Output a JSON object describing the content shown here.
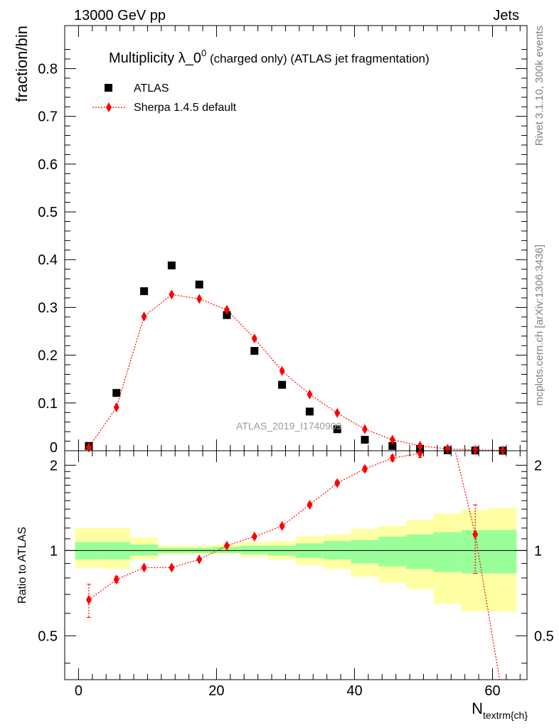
{
  "header": {
    "left": "13000 GeV pp",
    "right": "Jets"
  },
  "side_labels": {
    "rivet": "Rivet 3.1.10,  300k events",
    "mcplots": "mcplots.cern.ch [arXiv:1306.3436]"
  },
  "chart_data": [
    {
      "type": "scatter",
      "title_main": "Multiplicity λ_0",
      "title_sup": "0",
      "title_rest": " (charged only) (ATLAS jet fragmentation)",
      "ylabel": "fraction/bin",
      "watermark": "ATLAS_2019_I1740909",
      "ylim": [
        0,
        0.89
      ],
      "xlim": [
        -2,
        65
      ],
      "yticks": [
        "0",
        "0.1",
        "0.2",
        "0.3",
        "0.4",
        "0.5",
        "0.6",
        "0.7",
        "0.8"
      ],
      "x": [
        1.5,
        5.5,
        9.5,
        13.5,
        17.5,
        21.5,
        25.5,
        29.5,
        33.5,
        37.5,
        41.5,
        45.5,
        49.5,
        53.5,
        57.5,
        61.5
      ],
      "series": [
        {
          "name": "ATLAS",
          "marker": "square",
          "color": "#000000",
          "values": [
            0.01,
            0.121,
            0.334,
            0.388,
            0.348,
            0.284,
            0.209,
            0.138,
            0.082,
            0.045,
            0.023,
            0.01,
            0.004,
            0.001,
            0.0005,
            0.0002
          ]
        },
        {
          "name": "Sherpa 1.4.5 default",
          "marker": "diamond",
          "color": "#ff0000",
          "values": [
            0.007,
            0.091,
            0.281,
            0.327,
            0.318,
            0.295,
            0.235,
            0.167,
            0.118,
            0.079,
            0.045,
            0.023,
            0.01,
            0.004,
            0.0015,
            0.0005
          ]
        }
      ]
    },
    {
      "type": "line",
      "ylabel": "Ratio to ATLAS",
      "xlabel": "N",
      "xlabel_sub": "textrm{ch}",
      "ylim": [
        0.35,
        2.25
      ],
      "xlim": [
        -2,
        65
      ],
      "yticks": [
        "0.5",
        "1",
        "2"
      ],
      "xticks": [
        "0",
        "20",
        "40",
        "60"
      ],
      "bands": [
        {
          "x0": -0.5,
          "x1": 3.5,
          "stat_lo": 0.93,
          "stat_hi": 1.07,
          "tot_lo": 0.87,
          "tot_hi": 1.2
        },
        {
          "x0": 3.5,
          "x1": 7.5,
          "stat_lo": 0.93,
          "stat_hi": 1.07,
          "tot_lo": 0.86,
          "tot_hi": 1.2
        },
        {
          "x0": 7.5,
          "x1": 11.5,
          "stat_lo": 0.96,
          "stat_hi": 1.05,
          "tot_lo": 0.93,
          "tot_hi": 1.11
        },
        {
          "x0": 11.5,
          "x1": 15.5,
          "stat_lo": 0.98,
          "stat_hi": 1.02,
          "tot_lo": 0.97,
          "tot_hi": 1.04
        },
        {
          "x0": 15.5,
          "x1": 19.5,
          "stat_lo": 0.98,
          "stat_hi": 1.02,
          "tot_lo": 0.97,
          "tot_hi": 1.04
        },
        {
          "x0": 19.5,
          "x1": 23.5,
          "stat_lo": 0.98,
          "stat_hi": 1.03,
          "tot_lo": 0.97,
          "tot_hi": 1.05
        },
        {
          "x0": 23.5,
          "x1": 27.5,
          "stat_lo": 0.97,
          "stat_hi": 1.04,
          "tot_lo": 0.95,
          "tot_hi": 1.07
        },
        {
          "x0": 27.5,
          "x1": 31.5,
          "stat_lo": 0.96,
          "stat_hi": 1.04,
          "tot_lo": 0.93,
          "tot_hi": 1.08
        },
        {
          "x0": 31.5,
          "x1": 35.5,
          "stat_lo": 0.94,
          "stat_hi": 1.06,
          "tot_lo": 0.89,
          "tot_hi": 1.12
        },
        {
          "x0": 35.5,
          "x1": 39.5,
          "stat_lo": 0.93,
          "stat_hi": 1.08,
          "tot_lo": 0.86,
          "tot_hi": 1.14
        },
        {
          "x0": 39.5,
          "x1": 43.5,
          "stat_lo": 0.9,
          "stat_hi": 1.09,
          "tot_lo": 0.81,
          "tot_hi": 1.19
        },
        {
          "x0": 43.5,
          "x1": 47.5,
          "stat_lo": 0.88,
          "stat_hi": 1.12,
          "tot_lo": 0.77,
          "tot_hi": 1.22
        },
        {
          "x0": 47.5,
          "x1": 51.5,
          "stat_lo": 0.86,
          "stat_hi": 1.14,
          "tot_lo": 0.73,
          "tot_hi": 1.28
        },
        {
          "x0": 51.5,
          "x1": 55.5,
          "stat_lo": 0.84,
          "stat_hi": 1.16,
          "tot_lo": 0.65,
          "tot_hi": 1.35
        },
        {
          "x0": 55.5,
          "x1": 59.5,
          "stat_lo": 0.83,
          "stat_hi": 1.18,
          "tot_lo": 0.61,
          "tot_hi": 1.39
        },
        {
          "x0": 59.5,
          "x1": 63.5,
          "stat_lo": 0.83,
          "stat_hi": 1.18,
          "tot_lo": 0.61,
          "tot_hi": 1.41
        }
      ],
      "series": [
        {
          "name": "Sherpa 1.4.5 default",
          "color": "#ff0000",
          "x": [
            1.5,
            5.5,
            9.5,
            13.5,
            17.5,
            21.5,
            25.5,
            29.5,
            33.5,
            37.5,
            41.5,
            45.5,
            49.5,
            57.5
          ],
          "values": [
            0.67,
            0.79,
            0.87,
            0.87,
            0.93,
            1.04,
            1.12,
            1.22,
            1.45,
            1.73,
            1.94,
            2.12,
            2.2,
            1.14
          ],
          "err": [
            0.09,
            0.02,
            0.01,
            0.01,
            0.01,
            0.01,
            0.01,
            0.02,
            0.02,
            0.03,
            0.04,
            0.05,
            0.07,
            0.31
          ],
          "line_points_x": [
            1.5,
            5.5,
            9.5,
            13.5,
            17.5,
            21.5,
            25.5,
            29.5,
            33.5,
            37.5,
            41.5,
            45.5,
            49.5,
            53.5,
            57.5,
            61.5
          ],
          "line_points_y": [
            0.67,
            0.79,
            0.87,
            0.87,
            0.93,
            1.04,
            1.12,
            1.22,
            1.45,
            1.73,
            1.94,
            2.12,
            2.2,
            2.9,
            1.14,
            0.3
          ]
        }
      ]
    }
  ]
}
